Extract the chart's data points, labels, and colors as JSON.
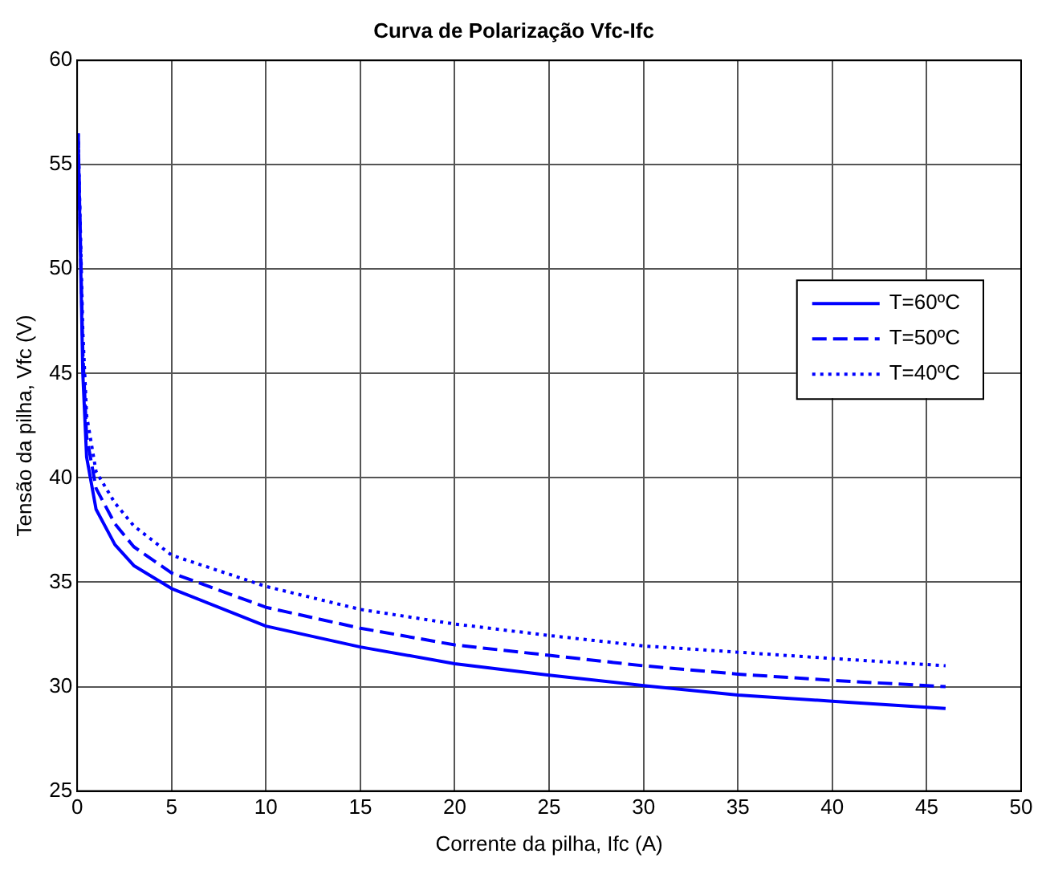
{
  "chart_data": {
    "type": "line",
    "title": "Curva de Polarização Vfc-Ifc",
    "xlabel": "Corrente da pilha, Ifc (A)",
    "ylabel": "Tensão da pilha, Vfc (V)",
    "xlim": [
      0,
      50
    ],
    "xticks": [
      0,
      5,
      10,
      15,
      20,
      25,
      30,
      35,
      40,
      45,
      50
    ],
    "ylim": [
      25,
      60
    ],
    "yticks": [
      25,
      30,
      35,
      40,
      45,
      50,
      55,
      60
    ],
    "grid": true,
    "legend": "right",
    "marker": "none",
    "x": [
      0.05,
      0.3,
      0.5,
      1,
      2,
      3,
      5,
      10,
      15,
      20,
      25,
      30,
      35,
      40,
      46
    ],
    "series": [
      {
        "name": "T=60ºC",
        "color": "#0000ff",
        "line_style": "solid",
        "values": [
          56.5,
          45,
          41,
          38.5,
          36.8,
          35.8,
          34.7,
          32.9,
          31.9,
          31.1,
          30.55,
          30.05,
          29.6,
          29.3,
          28.95
        ]
      },
      {
        "name": "T=50ºC",
        "color": "#0000ff",
        "line_style": "dashed",
        "values": [
          56.5,
          46,
          42,
          39.5,
          37.8,
          36.7,
          35.45,
          33.8,
          32.8,
          32.0,
          31.5,
          31.0,
          30.6,
          30.3,
          30.0
        ]
      },
      {
        "name": "T=40ºC",
        "color": "#0000ff",
        "line_style": "dotted",
        "values": [
          56.5,
          47,
          43,
          40.3,
          38.8,
          37.7,
          36.3,
          34.8,
          33.7,
          33.0,
          32.45,
          31.95,
          31.65,
          31.35,
          31.0
        ]
      }
    ]
  }
}
